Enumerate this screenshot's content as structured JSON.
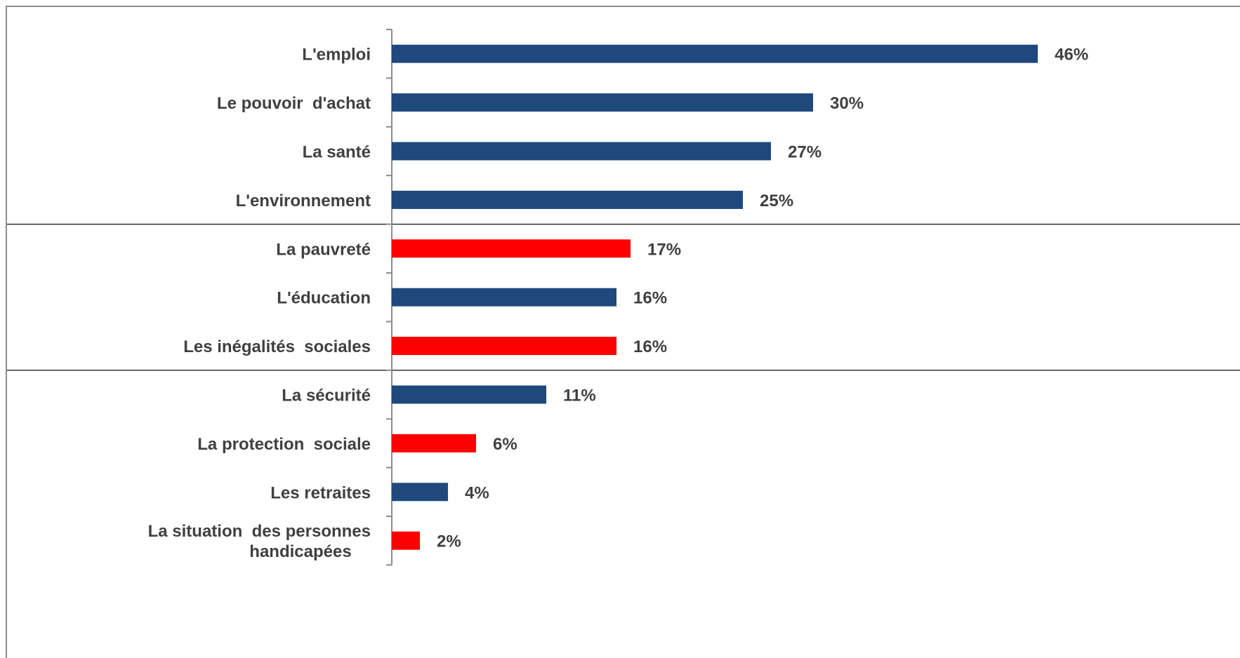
{
  "chart_data": {
    "type": "bar",
    "orientation": "horizontal",
    "categories": [
      "L'emploi",
      "Le pouvoir  d'achat",
      "La santé",
      "L'environnement",
      "La pauvreté",
      "L'éducation",
      "Les inégalités  sociales",
      "La sécurité",
      "La protection  sociale",
      "Les retraites",
      "La situation  des personnes handicapées"
    ],
    "category_lines": [
      [
        "L'emploi"
      ],
      [
        "Le pouvoir  d'achat"
      ],
      [
        "La santé"
      ],
      [
        "L'environnement"
      ],
      [
        "La pauvreté"
      ],
      [
        "L'éducation"
      ],
      [
        "Les inégalités  sociales"
      ],
      [
        "La sécurité"
      ],
      [
        "La protection  sociale"
      ],
      [
        "Les retraites"
      ],
      [
        "La situation  des personnes",
        "handicapées"
      ]
    ],
    "values": [
      46,
      30,
      27,
      25,
      17,
      16,
      16,
      11,
      6,
      4,
      2
    ],
    "value_labels": [
      "46%",
      "30%",
      "27%",
      "25%",
      "17%",
      "16%",
      "16%",
      "11%",
      "6%",
      "4%",
      "2%"
    ],
    "highlighted": [
      false,
      false,
      false,
      false,
      true,
      false,
      true,
      false,
      true,
      false,
      true
    ],
    "unit": "%",
    "xlim": [
      0,
      50
    ],
    "grid": false,
    "legend": "none",
    "group_separators_after_index": [
      3,
      6
    ],
    "colors": {
      "default": "#1f497d",
      "highlight": "#ff0000",
      "text": "#404040",
      "axis": "#8c8c8c",
      "separator": "#333333"
    }
  }
}
